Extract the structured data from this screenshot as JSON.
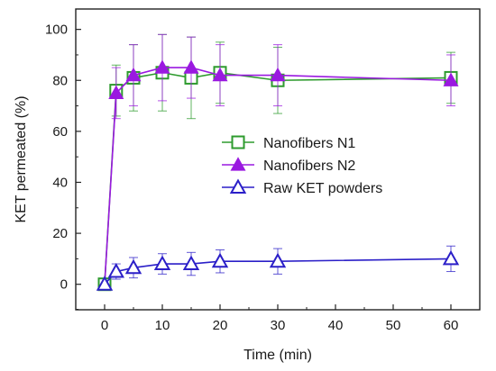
{
  "chart_data": {
    "type": "line",
    "xlabel": "Time (min)",
    "ylabel": "KET permeated (%)",
    "xlim": [
      -5,
      65
    ],
    "ylim": [
      -10,
      108
    ],
    "x_ticks": [
      0,
      10,
      20,
      30,
      40,
      50,
      60
    ],
    "y_ticks": [
      0,
      20,
      40,
      60,
      80,
      100
    ],
    "x": [
      0,
      2,
      5,
      10,
      15,
      20,
      30,
      60
    ],
    "legend_position": "center-right",
    "series": [
      {
        "name": "Nanofibers N1",
        "color": "#2e9b2e",
        "marker": "square-open",
        "values": [
          0,
          76,
          81,
          83,
          81,
          83,
          80,
          81
        ],
        "errors": [
          0,
          10,
          13,
          15,
          16,
          12,
          13,
          10
        ]
      },
      {
        "name": "Nanofibers N2",
        "color": "#9a19e0",
        "marker": "triangle-filled",
        "values": [
          0,
          75,
          82,
          85,
          85,
          82,
          82,
          80
        ],
        "errors": [
          0,
          10,
          12,
          13,
          12,
          12,
          12,
          10
        ]
      },
      {
        "name": "Raw KET powders",
        "color": "#2b1fc8",
        "marker": "triangle-open",
        "values": [
          0,
          5,
          6.5,
          8,
          8,
          9,
          9,
          10
        ],
        "errors": [
          0,
          3,
          4,
          4,
          4.5,
          4.5,
          5,
          5
        ]
      }
    ]
  }
}
